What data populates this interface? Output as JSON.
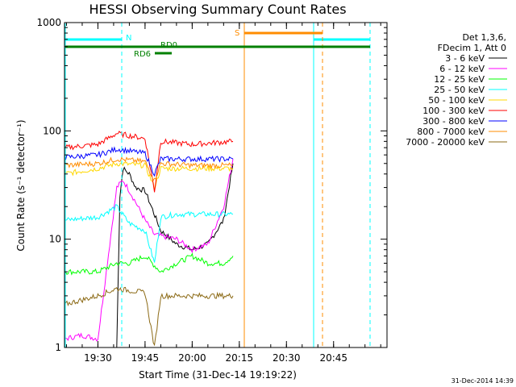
{
  "chart_data": {
    "type": "line",
    "title": "HESSI Observing Summary Count Rates",
    "xlabel": "Start Time (31-Dec-14 19:19:22)",
    "ylabel": "Count Rate (s⁻¹ detector⁻¹)",
    "y_scale": "log",
    "ylim": [
      1,
      1000
    ],
    "xlim": [
      "19:19:22",
      "21:02"
    ],
    "x_ticks": [
      "19:30",
      "19:45",
      "20:00",
      "20:15",
      "20:30",
      "20:45"
    ],
    "y_ticks": [
      "1",
      "10",
      "100",
      "1000"
    ],
    "grid": false,
    "legend_placement": "right",
    "legend_header": [
      "Det 1,3,6,",
      "FDecim 1, Att 0"
    ],
    "series": [
      {
        "name": "3 - 6 keV",
        "color": "#000000",
        "x": [
          "19:36",
          "19:37",
          "19:38",
          "19:40",
          "19:42",
          "19:45",
          "19:47",
          "19:50",
          "19:55",
          "20:00",
          "20:05",
          "20:10",
          "20:13"
        ],
        "y": [
          1,
          25,
          45,
          40,
          30,
          28,
          20,
          12,
          9,
          8,
          9,
          15,
          50
        ]
      },
      {
        "name": "6 - 12 keV",
        "color": "#ff00ff",
        "x": [
          "19:19:22",
          "19:25",
          "19:30",
          "19:36",
          "19:38",
          "19:40",
          "19:42",
          "19:45",
          "19:48",
          "19:55",
          "20:00",
          "20:05",
          "20:10",
          "20:13"
        ],
        "y": [
          1.2,
          1.3,
          1.2,
          30,
          35,
          28,
          22,
          15,
          11,
          10,
          8,
          9,
          20,
          55
        ]
      },
      {
        "name": "12 - 25 keV",
        "color": "#00ff00",
        "x": [
          "19:19:22",
          "19:30",
          "19:36",
          "19:40",
          "19:45",
          "19:50",
          "19:55",
          "20:00",
          "20:05",
          "20:10",
          "20:13"
        ],
        "y": [
          5,
          5,
          6,
          6,
          7,
          5,
          6,
          7,
          6,
          6,
          7
        ]
      },
      {
        "name": "25 - 50 keV",
        "color": "#00ffff",
        "x": [
          "19:19:22",
          "19:30",
          "19:36",
          "19:40",
          "19:45",
          "19:48",
          "19:50",
          "19:55",
          "20:00",
          "20:05",
          "20:13"
        ],
        "y": [
          15,
          16,
          20,
          14,
          12,
          6,
          16,
          17,
          17,
          17,
          17
        ]
      },
      {
        "name": "50 - 100 keV",
        "color": "#ffd700",
        "x": [
          "19:19:22",
          "19:30",
          "19:36",
          "19:45",
          "19:48",
          "19:50",
          "20:00",
          "20:13"
        ],
        "y": [
          40,
          45,
          50,
          48,
          30,
          45,
          45,
          45
        ]
      },
      {
        "name": "100 - 300 keV",
        "color": "#ff0000",
        "x": [
          "19:19:22",
          "19:30",
          "19:36",
          "19:45",
          "19:48",
          "19:50",
          "20:00",
          "20:13"
        ],
        "y": [
          70,
          75,
          95,
          85,
          28,
          80,
          75,
          80
        ]
      },
      {
        "name": "300 - 800 keV",
        "color": "#0000ff",
        "x": [
          "19:19:22",
          "19:30",
          "19:36",
          "19:45",
          "19:48",
          "19:50",
          "20:00",
          "20:13"
        ],
        "y": [
          57,
          60,
          68,
          62,
          40,
          55,
          55,
          55
        ]
      },
      {
        "name": "800 - 7000 keV",
        "color": "#ff8c00",
        "x": [
          "19:19:22",
          "19:30",
          "19:36",
          "19:45",
          "19:48",
          "19:50",
          "20:00",
          "20:13"
        ],
        "y": [
          48,
          50,
          55,
          52,
          35,
          50,
          48,
          48
        ]
      },
      {
        "name": "7000 - 20000 keV",
        "color": "#8b6914",
        "x": [
          "19:19:22",
          "19:30",
          "19:36",
          "19:45",
          "19:48",
          "19:50",
          "20:00",
          "20:13"
        ],
        "y": [
          2.5,
          3,
          3.5,
          3.2,
          1,
          3,
          3,
          3
        ]
      }
    ],
    "annotations": [
      {
        "label": "N",
        "color": "#00ffff"
      },
      {
        "label": "S",
        "color": "#ff8c00"
      },
      {
        "label": "RD0",
        "color": "#008000"
      },
      {
        "label": "RD6",
        "color": "#008000"
      }
    ]
  },
  "timestamp": "31-Dec-2014 14:39"
}
